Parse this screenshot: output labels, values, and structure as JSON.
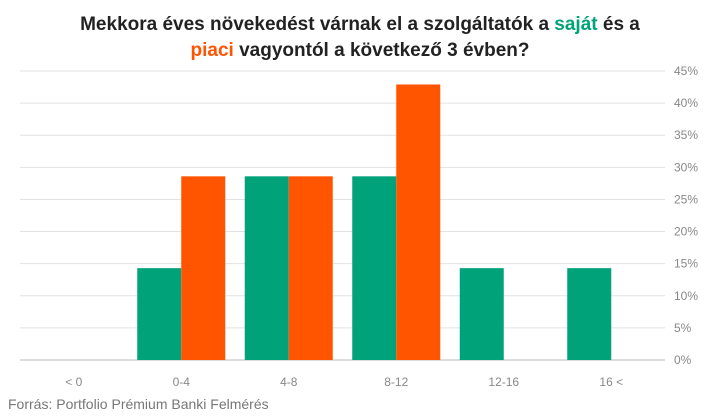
{
  "chart_data": {
    "type": "bar",
    "title": {
      "line1": "Mekkora éves növekedést várnak el a szolgáltatók a ",
      "highlight1": "saját",
      "mid": " és a",
      "highlight2": "piaci",
      "line2": " vagyontól a következő 3 évben?"
    },
    "categories": [
      "< 0",
      "0-4",
      "4-8",
      "8-12",
      "12-16",
      "16 <"
    ],
    "series": [
      {
        "name": "saját",
        "color": "#00A27A",
        "values": [
          0,
          14.3,
          28.6,
          28.6,
          14.3,
          14.3
        ]
      },
      {
        "name": "piaci",
        "color": "#FF5400",
        "values": [
          0,
          28.6,
          28.6,
          42.9,
          0,
          0
        ]
      }
    ],
    "ylim": [
      0,
      45
    ],
    "yticks": [
      "45%",
      "40%",
      "35%",
      "30%",
      "25%",
      "20%",
      "15%",
      "10%",
      "5%",
      "0%"
    ],
    "y_axis_position": "right",
    "grid": true,
    "legend": "none"
  },
  "source": "Forrás: Portfolio Prémium Banki Felmérés"
}
